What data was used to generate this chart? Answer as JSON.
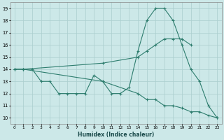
{
  "line1_x": [
    0,
    1,
    2,
    3,
    4,
    5,
    6,
    7,
    8,
    9,
    10,
    11,
    12,
    13,
    14,
    15,
    16,
    17,
    18,
    19,
    20,
    21,
    22,
    23
  ],
  "line1_y": [
    14,
    14,
    14,
    13,
    13,
    12,
    12,
    12,
    12,
    13.5,
    13,
    12,
    12,
    12.5,
    15.5,
    18,
    19,
    19,
    18,
    16,
    14,
    13,
    11,
    10
  ],
  "line2_x": [
    0,
    1,
    10,
    14,
    15,
    16,
    17,
    18,
    19,
    20
  ],
  "line2_y": [
    14,
    14,
    14.5,
    15,
    15.5,
    16,
    16.5,
    16.5,
    16.5,
    16
  ],
  "line3_x": [
    0,
    1,
    10,
    14,
    15,
    16,
    17,
    18,
    19,
    20,
    21,
    22,
    23
  ],
  "line3_y": [
    14,
    14,
    13,
    12,
    11.5,
    11.5,
    11,
    11,
    10.8,
    10.5,
    10.5,
    10.2,
    10
  ],
  "line_color": "#2e7d6e",
  "bg_color": "#cce8e8",
  "grid_color": "#aacece",
  "xlabel": "Humidex (Indice chaleur)",
  "xlim": [
    -0.5,
    23.5
  ],
  "ylim": [
    9.5,
    19.5
  ],
  "yticks": [
    10,
    11,
    12,
    13,
    14,
    15,
    16,
    17,
    18,
    19
  ],
  "xticks": [
    0,
    1,
    2,
    3,
    4,
    5,
    6,
    7,
    8,
    9,
    10,
    11,
    12,
    13,
    14,
    15,
    16,
    17,
    18,
    19,
    20,
    21,
    22,
    23
  ]
}
